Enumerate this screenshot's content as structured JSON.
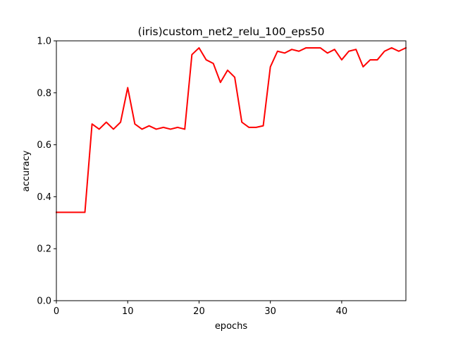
{
  "chart_data": {
    "type": "line",
    "title": "(iris)custom_net2_relu_100_eps50",
    "xlabel": "epochs",
    "ylabel": "accuracy",
    "xlim": [
      0,
      49
    ],
    "ylim": [
      0.0,
      1.0
    ],
    "xticks": [
      0,
      10,
      20,
      30,
      40
    ],
    "xtick_labels": [
      "0",
      "10",
      "20",
      "30",
      "40"
    ],
    "yticks": [
      0.0,
      0.2,
      0.4,
      0.6,
      0.8,
      1.0
    ],
    "ytick_labels": [
      "0.0",
      "0.2",
      "0.4",
      "0.6",
      "0.8",
      "1.0"
    ],
    "grid": false,
    "series": [
      {
        "name": "accuracy",
        "color": "#ff0000",
        "x": [
          0,
          1,
          2,
          3,
          4,
          5,
          6,
          7,
          8,
          9,
          10,
          11,
          12,
          13,
          14,
          15,
          16,
          17,
          18,
          19,
          20,
          21,
          22,
          23,
          24,
          25,
          26,
          27,
          28,
          29,
          30,
          31,
          32,
          33,
          34,
          35,
          36,
          37,
          38,
          39,
          40,
          41,
          42,
          43,
          44,
          45,
          46,
          47,
          48,
          49
        ],
        "values": [
          0.34,
          0.34,
          0.34,
          0.34,
          0.34,
          0.68,
          0.66,
          0.687,
          0.66,
          0.687,
          0.82,
          0.68,
          0.66,
          0.673,
          0.66,
          0.667,
          0.66,
          0.667,
          0.66,
          0.947,
          0.973,
          0.927,
          0.913,
          0.84,
          0.887,
          0.86,
          0.687,
          0.667,
          0.667,
          0.673,
          0.9,
          0.96,
          0.953,
          0.967,
          0.96,
          0.973,
          0.973,
          0.973,
          0.953,
          0.967,
          0.927,
          0.96,
          0.967,
          0.9,
          0.927,
          0.927,
          0.96,
          0.973,
          0.96,
          0.973
        ]
      }
    ]
  }
}
